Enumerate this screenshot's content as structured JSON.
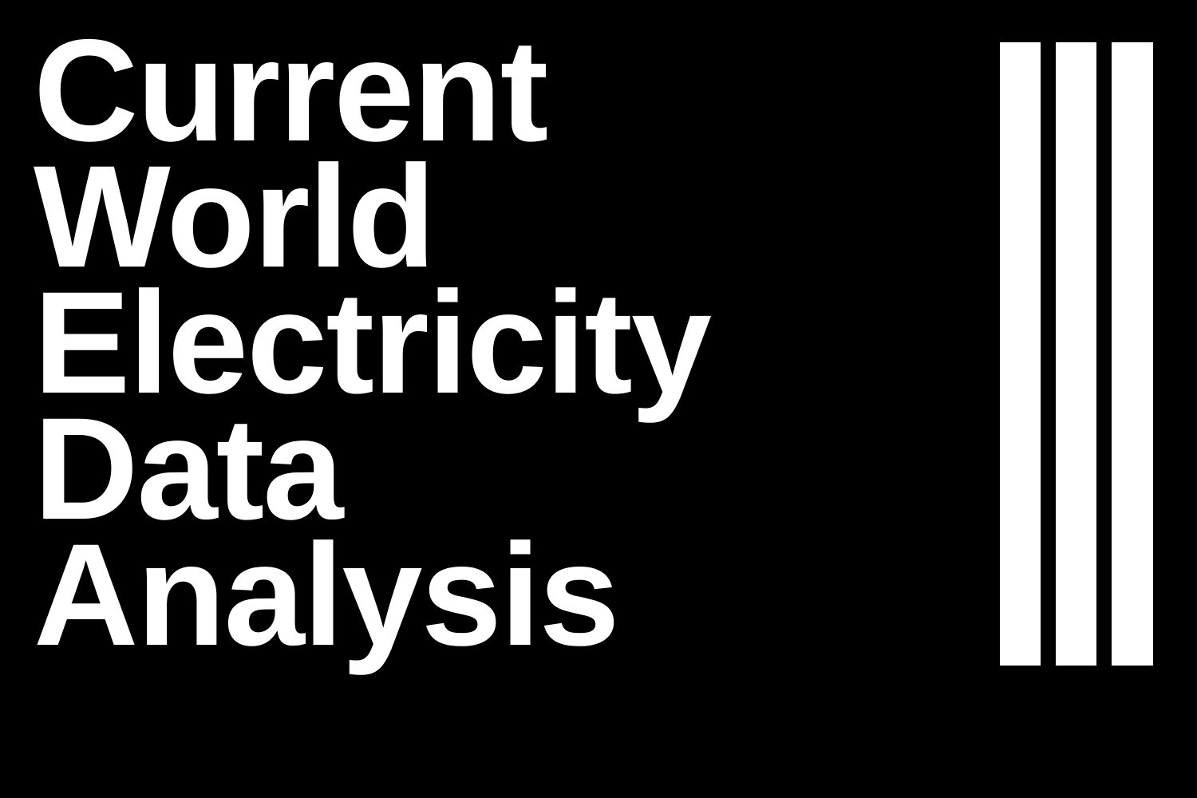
{
  "title": {
    "lines": [
      "Current",
      "World",
      "Electricity",
      "Data",
      "Analysis"
    ]
  },
  "colors": {
    "background": "#000000",
    "foreground": "#ffffff"
  },
  "logo": {
    "icon": "three-vertical-bars-icon"
  }
}
